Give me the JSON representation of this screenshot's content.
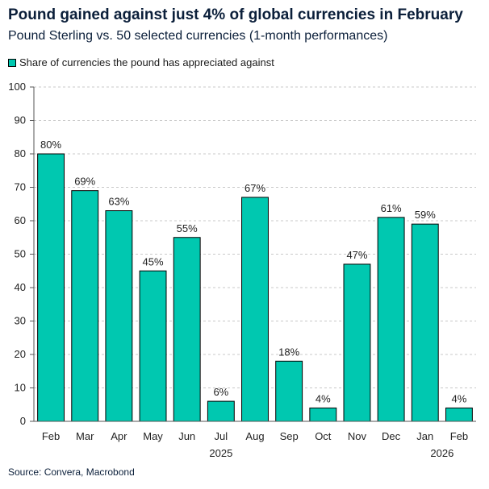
{
  "title": "Pound gained against just 4% of global currencies in February",
  "subtitle": "Pound Sterling vs. 50 selected currencies (1-month performances)",
  "legend_label": "Share of currencies the pound has appreciated against",
  "source": "Source: Convera, Macrobond",
  "colors": {
    "bar": "#00c8b0",
    "bar_stroke": "#000000",
    "grid": "#c8c8c8",
    "text": "#0b1f3a"
  },
  "chart_data": {
    "type": "bar",
    "title": "Pound gained against just 4% of global currencies in February",
    "subtitle": "Pound Sterling vs. 50 selected currencies (1-month performances)",
    "categories": [
      "Feb",
      "Mar",
      "Apr",
      "May",
      "Jun",
      "Jul",
      "Aug",
      "Sep",
      "Oct",
      "Nov",
      "Dec",
      "Jan",
      "Feb"
    ],
    "year_labels": [
      {
        "label": "2025",
        "category_index": 5
      },
      {
        "label": "2026",
        "category_index": 11.5
      }
    ],
    "series": [
      {
        "name": "Share of currencies the pound has appreciated against",
        "values": [
          80,
          69,
          63,
          45,
          55,
          6,
          67,
          18,
          4,
          47,
          61,
          59,
          4
        ]
      }
    ],
    "data_labels": [
      "80%",
      "69%",
      "63%",
      "45%",
      "55%",
      "6%",
      "67%",
      "18%",
      "4%",
      "47%",
      "61%",
      "59%",
      "4%"
    ],
    "ylim": [
      0,
      100
    ],
    "yticks": [
      0,
      10,
      20,
      30,
      40,
      50,
      60,
      70,
      80,
      90,
      100
    ],
    "grid": true,
    "legend_position": "top-left"
  }
}
